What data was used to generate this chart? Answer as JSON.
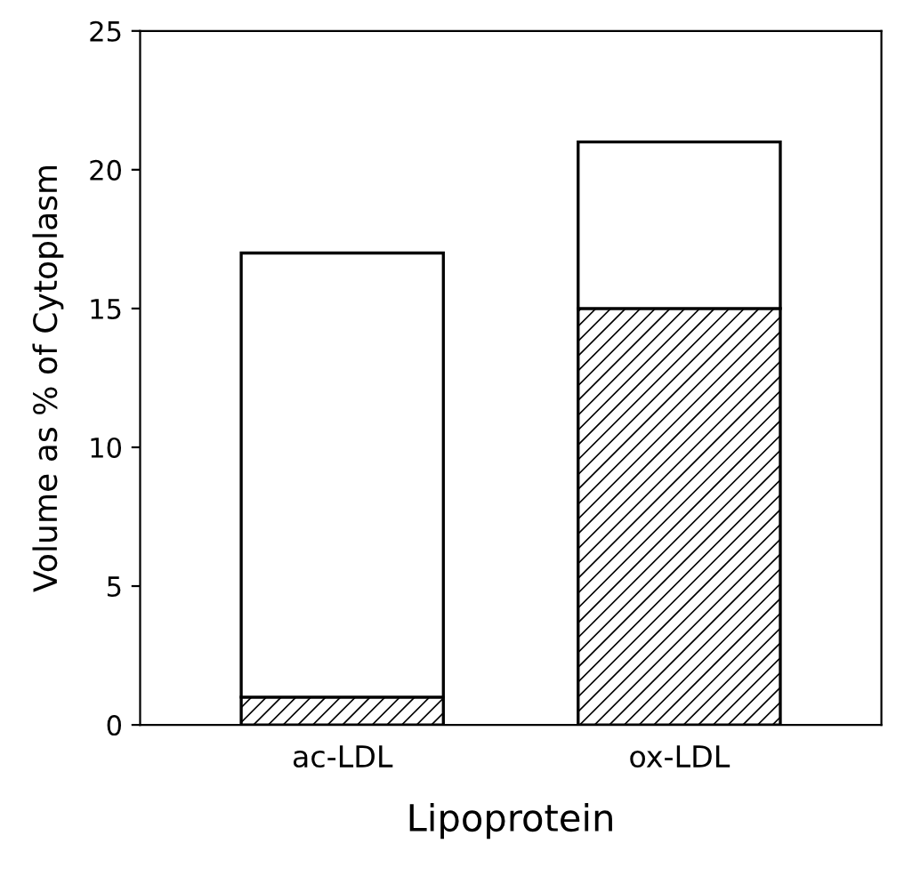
{
  "chart_data": {
    "type": "bar",
    "stacked": true,
    "categories": [
      "ac-LDL",
      "ox-LDL"
    ],
    "series": [
      {
        "color": "#000000",
        "values": [
          1,
          15
        ]
      },
      {
        "color": "#ffffff",
        "values": [
          16,
          6
        ]
      }
    ],
    "xlabel": "Lipoprotein",
    "ylabel": "Volume as % of Cytoplasm",
    "ylim": [
      0,
      25
    ],
    "yticks": [
      0,
      5,
      10,
      15,
      20,
      25
    ],
    "grid": false,
    "legend": false
  }
}
